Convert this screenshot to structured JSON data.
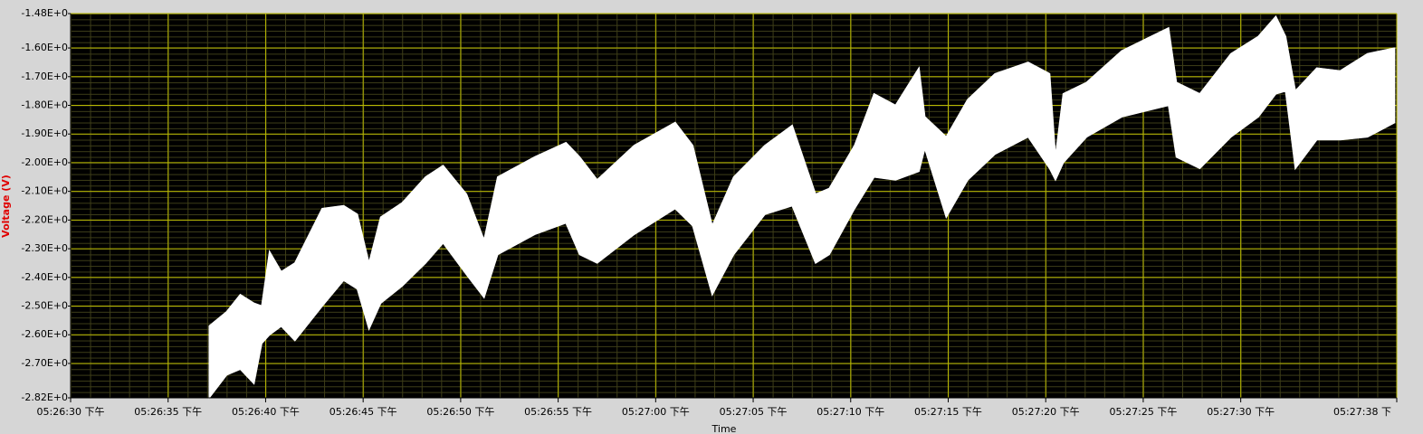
{
  "chart_data": {
    "type": "band",
    "y_label": "Voltage (V)",
    "x_label": "Time",
    "x": [
      62797.1,
      62798.0,
      62798.7,
      62799.4,
      62799.8,
      62800.2,
      62800.8,
      62801.5,
      62802.9,
      62804.0,
      62804.7,
      62805.3,
      62805.9,
      62807.0,
      62808.2,
      62809.1,
      62810.3,
      62811.2,
      62811.9,
      62813.8,
      62815.4,
      62816.1,
      62817.0,
      62818.9,
      62821.0,
      62821.9,
      62822.9,
      62824.0,
      62825.6,
      62827.0,
      62828.2,
      62828.9,
      62830.2,
      62831.2,
      62832.3,
      62833.5,
      62833.8,
      62834.9,
      62836.0,
      62837.4,
      62839.1,
      62840.2,
      62840.5,
      62840.9,
      62842.1,
      62843.9,
      62846.3,
      62846.7,
      62847.9,
      62849.5,
      62850.9,
      62851.8,
      62852.3,
      62852.8,
      62853.9,
      62855.1,
      62856.5,
      62857.9
    ],
    "series": [
      {
        "color": "#ffffff",
        "values": [
          -2.57,
          -2.52,
          -2.46,
          -2.49,
          -2.5,
          -2.31,
          -2.38,
          -2.35,
          -2.16,
          -2.15,
          -2.18,
          -2.35,
          -2.19,
          -2.14,
          -2.05,
          -2.01,
          -2.11,
          -2.27,
          -2.05,
          -1.98,
          -1.93,
          -1.98,
          -2.06,
          -1.94,
          -1.86,
          -1.94,
          -2.22,
          -2.05,
          -1.94,
          -1.87,
          -2.11,
          -2.09,
          -1.94,
          -1.76,
          -1.8,
          -1.67,
          -1.84,
          -1.91,
          -1.78,
          -1.69,
          -1.65,
          -1.69,
          -1.98,
          -1.76,
          -1.72,
          -1.61,
          -1.53,
          -1.72,
          -1.76,
          -1.62,
          -1.56,
          -1.49,
          -1.56,
          -1.75,
          -1.67,
          -1.68,
          -1.62,
          -1.6
        ]
      },
      {
        "color": "#ffffff",
        "values": [
          -2.82,
          -2.74,
          -2.72,
          -2.77,
          -2.63,
          -2.6,
          -2.57,
          -2.62,
          -2.5,
          -2.41,
          -2.44,
          -2.58,
          -2.49,
          -2.43,
          -2.35,
          -2.28,
          -2.39,
          -2.47,
          -2.32,
          -2.25,
          -2.21,
          -2.32,
          -2.35,
          -2.25,
          -2.16,
          -2.22,
          -2.46,
          -2.32,
          -2.18,
          -2.15,
          -2.35,
          -2.32,
          -2.16,
          -2.05,
          -2.06,
          -2.03,
          -1.95,
          -2.19,
          -2.06,
          -1.97,
          -1.91,
          -2.02,
          -2.06,
          -2.0,
          -1.91,
          -1.84,
          -1.8,
          -1.98,
          -2.02,
          -1.91,
          -1.84,
          -1.76,
          -1.75,
          -2.02,
          -1.92,
          -1.92,
          -1.91,
          -1.86
        ]
      }
    ],
    "xlim": [
      62790,
      62858
    ],
    "xticks": [
      {
        "value": 62790,
        "label": "05:26:30 下午"
      },
      {
        "value": 62795,
        "label": "05:26:35 下午"
      },
      {
        "value": 62800,
        "label": "05:26:40 下午"
      },
      {
        "value": 62805,
        "label": "05:26:45 下午"
      },
      {
        "value": 62810,
        "label": "05:26:50 下午"
      },
      {
        "value": 62815,
        "label": "05:26:55 下午"
      },
      {
        "value": 62820,
        "label": "05:27:00 下午"
      },
      {
        "value": 62825,
        "label": "05:27:05 下午"
      },
      {
        "value": 62830,
        "label": "05:27:10 下午"
      },
      {
        "value": 62835,
        "label": "05:27:15 下午"
      },
      {
        "value": 62840,
        "label": "05:27:20 下午"
      },
      {
        "value": 62845,
        "label": "05:27:25 下午"
      },
      {
        "value": 62850,
        "label": "05:27:30 下午"
      },
      {
        "value": 62858,
        "label": "05:27:38 下"
      }
    ],
    "ylim": [
      -2.82,
      -1.48
    ],
    "yticks": [
      {
        "value": -1.48,
        "label": "-1.48E+0"
      },
      {
        "value": -1.6,
        "label": "-1.60E+0"
      },
      {
        "value": -1.7,
        "label": "-1.70E+0"
      },
      {
        "value": -1.8,
        "label": "-1.80E+0"
      },
      {
        "value": -1.9,
        "label": "-1.90E+0"
      },
      {
        "value": -2.0,
        "label": "-2.00E+0"
      },
      {
        "value": -2.1,
        "label": "-2.10E+0"
      },
      {
        "value": -2.2,
        "label": "-2.20E+0"
      },
      {
        "value": -2.3,
        "label": "-2.30E+0"
      },
      {
        "value": -2.4,
        "label": "-2.40E+0"
      },
      {
        "value": -2.5,
        "label": "-2.50E+0"
      },
      {
        "value": -2.6,
        "label": "-2.60E+0"
      },
      {
        "value": -2.7,
        "label": "-2.70E+0"
      },
      {
        "value": -2.82,
        "label": "-2.82E+0"
      }
    ],
    "grid": true,
    "grid_color": "#b8b800",
    "background": "#000000"
  }
}
